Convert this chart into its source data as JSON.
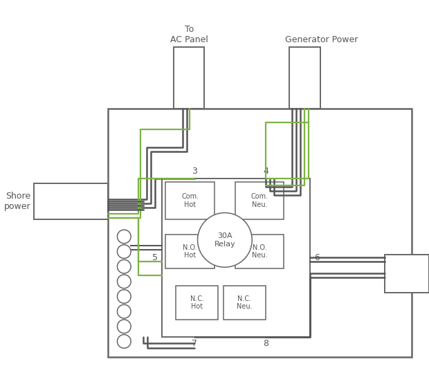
{
  "bg_color": "#ffffff",
  "ec": "#666666",
  "wire_dark": "#555555",
  "wire_green": "#7cb342",
  "text_color": "#555555",
  "labels": {
    "ac_panel": "To\nAC Panel",
    "gen_power": "Generator Power",
    "shore_power": "Shore\npower",
    "relay": "30A\nRelay",
    "com_hot": "Com.\nHot",
    "com_neu": "Com.\nNeu.",
    "no_hot": "N.O.\nHot",
    "no_neu": "N.O.\nNeu.",
    "nc_hot": "N.C.\nHot",
    "nc_neu": "N.C.\nNeu.",
    "n3": "3",
    "n4": "4",
    "n5": "5",
    "n6": "6",
    "n7": "7",
    "n8": "8"
  },
  "fs": 8,
  "fsn": 9
}
